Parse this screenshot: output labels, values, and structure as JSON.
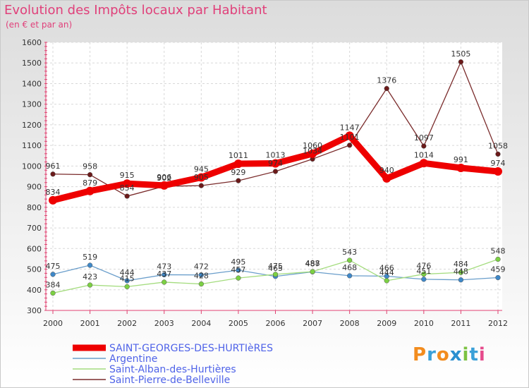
{
  "header": {
    "title": "Evolution des Impôts locaux par Habitant",
    "subtitle": "(en € et par an)"
  },
  "logo": {
    "text": "Proxiti",
    "colors": [
      "#f28c1e",
      "#3aa0d8",
      "#f28c1e",
      "#2a8fd0",
      "#7cc242",
      "#3aa0d8",
      "#e64b8c"
    ]
  },
  "chart_data": {
    "type": "line",
    "title": "Evolution des Impôts locaux par Habitant",
    "subtitle": "(en € et par an)",
    "xlabel": "",
    "ylabel": "",
    "categories": [
      "2000",
      "2001",
      "2002",
      "2003",
      "2004",
      "2005",
      "2006",
      "2007",
      "2008",
      "2009",
      "2010",
      "2011",
      "2012"
    ],
    "ylim": [
      300,
      1600
    ],
    "yticks": [
      300,
      400,
      500,
      600,
      700,
      800,
      900,
      1000,
      1100,
      1200,
      1300,
      1400,
      1500,
      1600
    ],
    "grid": true,
    "legend_position": "bottom-left",
    "series": [
      {
        "name": "SAINT-GEORGES-DES-HURTIèRES",
        "color": "#ee0000",
        "marker": "#ee0000",
        "thick": true,
        "values": [
          834,
          879,
          915,
          906,
          945,
          1011,
          1013,
          1060,
          1147,
          940,
          1014,
          991,
          974
        ],
        "labels": [
          "834",
          "879",
          "915",
          "906",
          "945",
          "1011",
          "1013",
          "1060",
          "1147",
          "940",
          "1014",
          "991",
          "974"
        ]
      },
      {
        "name": "Argentine",
        "color": "#6a9ecb",
        "marker": "#3f88c8",
        "thick": false,
        "values": [
          475,
          519,
          444,
          473,
          472,
          495,
          465,
          487,
          468,
          466,
          451,
          448,
          459
        ],
        "labels": [
          "475",
          "519",
          "444",
          "473",
          "472",
          "495",
          "465",
          "487",
          "468",
          "466",
          "451",
          "448",
          "459"
        ]
      },
      {
        "name": "Saint-Alban-des-Hurtières",
        "color": "#a4dc7e",
        "marker": "#7cd043",
        "thick": false,
        "values": [
          384,
          423,
          415,
          437,
          428,
          457,
          475,
          488,
          543,
          444,
          476,
          484,
          548
        ],
        "labels": [
          "384",
          "423",
          "415",
          "437",
          "428",
          "457",
          "475",
          "488",
          "543",
          "444",
          "476",
          "484",
          "548"
        ]
      },
      {
        "name": "Saint-Pierre-de-Belleville",
        "color": "#7a2b2b",
        "marker": "#6b1a1a",
        "thick": false,
        "values": [
          961,
          958,
          854,
          902,
          905,
          929,
          974,
          1034,
          1101,
          1376,
          1097,
          1505,
          1058
        ],
        "labels": [
          "961",
          "958",
          "854",
          "902",
          "905",
          "929",
          "974",
          "1034",
          "1101",
          "1376",
          "1097",
          "1505",
          "1058"
        ]
      }
    ]
  }
}
